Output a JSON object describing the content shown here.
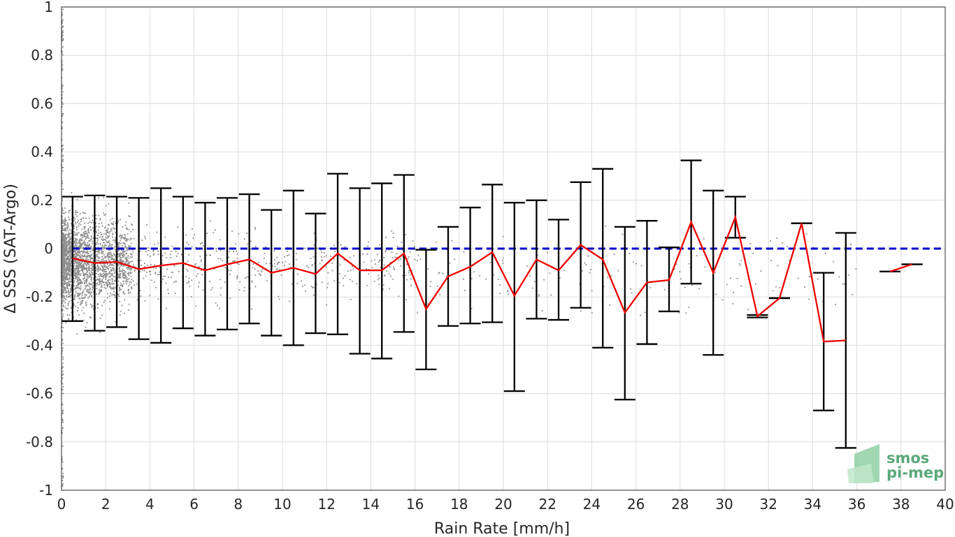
{
  "chart_data": {
    "type": "scatter",
    "xlabel": "Rain Rate [mm/h]",
    "ylabel": "Δ SSS (SAT-Argo)",
    "xlim": [
      0,
      40
    ],
    "ylim": [
      -1,
      1
    ],
    "x_ticks": [
      0,
      2,
      4,
      6,
      8,
      10,
      12,
      14,
      16,
      18,
      20,
      22,
      24,
      26,
      28,
      30,
      32,
      34,
      36,
      38,
      40
    ],
    "y_ticks": [
      1,
      0.8,
      0.6,
      0.4,
      0.2,
      0,
      -0.2,
      -0.4,
      -0.6,
      -0.8,
      -1
    ],
    "grid": true,
    "reference_line": {
      "y": 0,
      "style": "dashed",
      "color": "#0000cc"
    },
    "scatter_series": {
      "description_color": "#8c8c8c",
      "density": "very dense near 0 mm/h, sparser toward higher rain rates"
    },
    "series": [
      {
        "x": [
          0.5,
          1.5,
          2.5,
          3.5,
          4.5,
          5.5,
          6.5,
          7.5,
          8.5,
          9.5,
          10.5,
          11.5,
          12.5,
          13.5,
          14.5,
          15.5,
          16.5,
          17.5,
          18.5,
          19.5,
          20.5,
          21.5,
          22.5,
          23.5,
          24.5,
          25.5,
          26.5,
          27.5,
          28.5,
          29.5,
          30.5,
          31.5,
          32.5,
          33.5,
          34.5,
          35.5,
          36.5,
          37.5,
          38.5
        ],
        "mean": [
          -0.04,
          -0.06,
          -0.055,
          -0.085,
          -0.07,
          -0.06,
          -0.09,
          -0.065,
          -0.045,
          -0.1,
          -0.08,
          -0.105,
          -0.02,
          -0.09,
          -0.09,
          -0.02,
          -0.25,
          -0.115,
          -0.075,
          -0.015,
          -0.195,
          -0.045,
          -0.09,
          0.015,
          -0.045,
          -0.265,
          -0.14,
          -0.13,
          0.11,
          -0.1,
          0.13,
          -0.28,
          -0.205,
          0.105,
          -0.385,
          -0.38,
          null,
          -0.095,
          -0.065
        ],
        "upper": [
          0.215,
          0.22,
          0.215,
          0.21,
          0.25,
          0.215,
          0.19,
          0.21,
          0.225,
          0.16,
          0.24,
          0.145,
          0.31,
          0.25,
          0.27,
          0.305,
          -0.005,
          0.09,
          0.17,
          0.265,
          0.19,
          0.2,
          0.12,
          0.275,
          0.33,
          0.09,
          0.115,
          0.005,
          0.365,
          0.24,
          0.215,
          -0.275,
          -0.205,
          0.105,
          -0.1,
          0.065,
          null,
          -0.095,
          -0.065
        ],
        "lower": [
          -0.3,
          -0.34,
          -0.325,
          -0.375,
          -0.39,
          -0.33,
          -0.36,
          -0.335,
          -0.31,
          -0.36,
          -0.4,
          -0.35,
          -0.355,
          -0.435,
          -0.455,
          -0.345,
          -0.5,
          -0.32,
          -0.31,
          -0.305,
          -0.59,
          -0.29,
          -0.295,
          -0.245,
          -0.41,
          -0.625,
          -0.395,
          -0.26,
          -0.145,
          -0.44,
          0.045,
          -0.285,
          -0.205,
          0.105,
          -0.67,
          -0.825,
          null,
          -0.095,
          -0.065
        ],
        "line_color": "#ee0000",
        "errorbar_color": "#000000"
      }
    ]
  },
  "logo": {
    "line1": "smos",
    "line2": "pi-mep",
    "color": "#5aa87a"
  }
}
